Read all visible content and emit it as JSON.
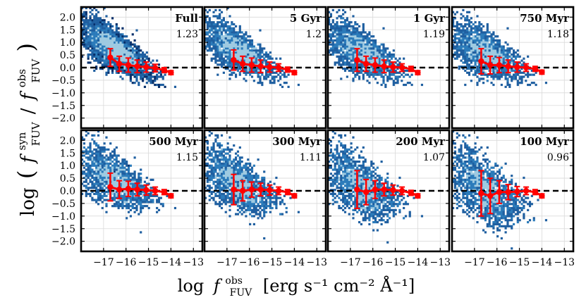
{
  "figure": {
    "ylabel_main": "log",
    "ylabel_frac_num": "f",
    "ylabel_num_sup": "syn",
    "ylabel_num_sub": "FUV",
    "ylabel_den": "f",
    "ylabel_den_sup": "obs",
    "ylabel_den_sub": "FUV",
    "xlabel_prefix": "log",
    "xlabel_f": "f",
    "xlabel_sup": "obs",
    "xlabel_sub": "FUV",
    "xlabel_units": "[erg s⁻¹ cm⁻² Å⁻¹]",
    "colors": {
      "hist_dark": "#08306b",
      "hist_mid": "#2b7bba",
      "hist_light": "#9ecae1",
      "median": "#ff0000",
      "zero_line": "#000000",
      "grid": "#d9d9d9"
    }
  },
  "chart_data": [
    {
      "type": "heatmap",
      "label": "Full",
      "value": "1.23",
      "xlim": [
        -18.0,
        -12.6
      ],
      "ylim": [
        -2.4,
        2.4
      ],
      "xticks": [
        -17,
        -16,
        -15,
        -14,
        -13
      ],
      "xtick_labels": [
        "−17",
        "−16",
        "−15",
        "−14",
        "−13"
      ],
      "yticks": [
        2.0,
        1.5,
        1.0,
        0.5,
        0.0,
        -0.5,
        -1.0,
        -1.5,
        -2.0
      ],
      "ytick_labels": [
        "2.0",
        "1.5",
        "1.0",
        "0.5",
        "0.0",
        "−0.5",
        "−1.0",
        "−1.5",
        "−2.0"
      ],
      "reference_line_y": 0,
      "medians": [
        {
          "x": -16.7,
          "y": 0.4,
          "err": 0.35
        },
        {
          "x": -16.3,
          "y": 0.15,
          "err": 0.3
        },
        {
          "x": -15.9,
          "y": 0.1,
          "err": 0.28
        },
        {
          "x": -15.5,
          "y": 0.05,
          "err": 0.25
        },
        {
          "x": -15.1,
          "y": 0.02,
          "err": 0.2
        },
        {
          "x": -14.7,
          "y": -0.02,
          "err": 0.15
        },
        {
          "x": -14.3,
          "y": -0.1,
          "err": 0.1
        },
        {
          "x": -14.0,
          "y": -0.2,
          "err": 0.08
        }
      ]
    },
    {
      "type": "heatmap",
      "label": "5 Gyr",
      "value": "1.2",
      "xlim": [
        -18.0,
        -12.6
      ],
      "ylim": [
        -2.4,
        2.4
      ],
      "xticks": [
        -17,
        -16,
        -15,
        -14,
        -13
      ],
      "xtick_labels": [
        "−17",
        "−16",
        "−15",
        "−14",
        "−13"
      ],
      "yticks": [
        2.0,
        1.5,
        1.0,
        0.5,
        0.0,
        -0.5,
        -1.0,
        -1.5,
        -2.0
      ],
      "ytick_labels": [
        "2.0",
        "1.5",
        "1.0",
        "0.5",
        "0.0",
        "−0.5",
        "−1.0",
        "−1.5",
        "−2.0"
      ],
      "reference_line_y": 0,
      "medians": [
        {
          "x": -16.7,
          "y": 0.3,
          "err": 0.4
        },
        {
          "x": -16.3,
          "y": 0.15,
          "err": 0.3
        },
        {
          "x": -15.9,
          "y": 0.1,
          "err": 0.28
        },
        {
          "x": -15.5,
          "y": 0.05,
          "err": 0.25
        },
        {
          "x": -15.1,
          "y": 0.02,
          "err": 0.2
        },
        {
          "x": -14.7,
          "y": 0.0,
          "err": 0.15
        },
        {
          "x": -14.3,
          "y": -0.08,
          "err": 0.1
        },
        {
          "x": -14.0,
          "y": -0.2,
          "err": 0.08
        }
      ]
    },
    {
      "type": "heatmap",
      "label": "1 Gyr",
      "value": "1.19",
      "xlim": [
        -18.0,
        -12.6
      ],
      "ylim": [
        -2.4,
        2.4
      ],
      "xticks": [
        -17,
        -16,
        -15,
        -14,
        -13
      ],
      "xtick_labels": [
        "−17",
        "−16",
        "−15",
        "−14",
        "−13"
      ],
      "yticks": [
        2.0,
        1.5,
        1.0,
        0.5,
        0.0,
        -0.5,
        -1.0,
        -1.5,
        -2.0
      ],
      "ytick_labels": [
        "2.0",
        "1.5",
        "1.0",
        "0.5",
        "0.0",
        "−0.5",
        "−1.0",
        "−1.5",
        "−2.0"
      ],
      "reference_line_y": 0,
      "medians": [
        {
          "x": -16.7,
          "y": 0.3,
          "err": 0.45
        },
        {
          "x": -16.3,
          "y": 0.15,
          "err": 0.3
        },
        {
          "x": -15.9,
          "y": 0.1,
          "err": 0.28
        },
        {
          "x": -15.5,
          "y": 0.05,
          "err": 0.25
        },
        {
          "x": -15.1,
          "y": 0.02,
          "err": 0.2
        },
        {
          "x": -14.7,
          "y": 0.0,
          "err": 0.15
        },
        {
          "x": -14.3,
          "y": -0.05,
          "err": 0.1
        },
        {
          "x": -14.0,
          "y": -0.2,
          "err": 0.08
        }
      ]
    },
    {
      "type": "heatmap",
      "label": "750 Myr",
      "value": "1.18",
      "xlim": [
        -18.0,
        -12.6
      ],
      "ylim": [
        -2.4,
        2.4
      ],
      "xticks": [
        -17,
        -16,
        -15,
        -14,
        -13
      ],
      "xtick_labels": [
        "−17",
        "−16",
        "−15",
        "−14",
        "−13"
      ],
      "yticks": [
        2.0,
        1.5,
        1.0,
        0.5,
        0.0,
        -0.5,
        -1.0,
        -1.5,
        -2.0
      ],
      "ytick_labels": [
        "2.0",
        "1.5",
        "1.0",
        "0.5",
        "0.0",
        "−0.5",
        "−1.0",
        "−1.5",
        "−2.0"
      ],
      "reference_line_y": 0,
      "medians": [
        {
          "x": -16.7,
          "y": 0.25,
          "err": 0.5
        },
        {
          "x": -16.3,
          "y": 0.1,
          "err": 0.35
        },
        {
          "x": -15.9,
          "y": 0.1,
          "err": 0.3
        },
        {
          "x": -15.5,
          "y": 0.05,
          "err": 0.25
        },
        {
          "x": -15.1,
          "y": 0.02,
          "err": 0.2
        },
        {
          "x": -14.7,
          "y": 0.0,
          "err": 0.15
        },
        {
          "x": -14.3,
          "y": -0.05,
          "err": 0.1
        },
        {
          "x": -14.0,
          "y": -0.18,
          "err": 0.08
        }
      ]
    },
    {
      "type": "heatmap",
      "label": "500 Myr",
      "value": "1.15",
      "xlim": [
        -18.0,
        -12.6
      ],
      "ylim": [
        -2.4,
        2.4
      ],
      "xticks": [
        -17,
        -16,
        -15,
        -14,
        -13
      ],
      "xtick_labels": [
        "−17",
        "−16",
        "−15",
        "−14",
        "−13"
      ],
      "yticks": [
        2.0,
        1.5,
        1.0,
        0.5,
        0.0,
        -0.5,
        -1.0,
        -1.5,
        -2.0
      ],
      "ytick_labels": [
        "2.0",
        "1.5",
        "1.0",
        "0.5",
        "0.0",
        "−0.5",
        "−1.0",
        "−1.5",
        "−2.0"
      ],
      "reference_line_y": 0,
      "medians": [
        {
          "x": -16.7,
          "y": 0.15,
          "err": 0.55
        },
        {
          "x": -16.3,
          "y": 0.05,
          "err": 0.35
        },
        {
          "x": -15.9,
          "y": 0.08,
          "err": 0.3
        },
        {
          "x": -15.5,
          "y": 0.05,
          "err": 0.25
        },
        {
          "x": -15.1,
          "y": 0.03,
          "err": 0.2
        },
        {
          "x": -14.7,
          "y": 0.0,
          "err": 0.15
        },
        {
          "x": -14.3,
          "y": -0.05,
          "err": 0.1
        },
        {
          "x": -14.0,
          "y": -0.2,
          "err": 0.08
        }
      ]
    },
    {
      "type": "heatmap",
      "label": "300 Myr",
      "value": "1.11",
      "xlim": [
        -18.0,
        -12.6
      ],
      "ylim": [
        -2.4,
        2.4
      ],
      "xticks": [
        -17,
        -16,
        -15,
        -14,
        -13
      ],
      "xtick_labels": [
        "−17",
        "−16",
        "−15",
        "−14",
        "−13"
      ],
      "yticks": [
        2.0,
        1.5,
        1.0,
        0.5,
        0.0,
        -0.5,
        -1.0,
        -1.5,
        -2.0
      ],
      "ytick_labels": [
        "2.0",
        "1.5",
        "1.0",
        "0.5",
        "0.0",
        "−0.5",
        "−1.0",
        "−1.5",
        "−2.0"
      ],
      "reference_line_y": 0,
      "medians": [
        {
          "x": -16.7,
          "y": 0.05,
          "err": 0.6
        },
        {
          "x": -16.3,
          "y": 0.0,
          "err": 0.4
        },
        {
          "x": -15.9,
          "y": 0.05,
          "err": 0.3
        },
        {
          "x": -15.5,
          "y": 0.05,
          "err": 0.25
        },
        {
          "x": -15.1,
          "y": 0.03,
          "err": 0.2
        },
        {
          "x": -14.7,
          "y": 0.0,
          "err": 0.15
        },
        {
          "x": -14.3,
          "y": -0.05,
          "err": 0.1
        },
        {
          "x": -14.0,
          "y": -0.2,
          "err": 0.08
        }
      ]
    },
    {
      "type": "heatmap",
      "label": "200 Myr",
      "value": "1.07",
      "xlim": [
        -18.0,
        -12.6
      ],
      "ylim": [
        -2.4,
        2.4
      ],
      "xticks": [
        -17,
        -16,
        -15,
        -14,
        -13
      ],
      "xtick_labels": [
        "−17",
        "−16",
        "−15",
        "−14",
        "−13"
      ],
      "yticks": [
        2.0,
        1.5,
        1.0,
        0.5,
        0.0,
        -0.5,
        -1.0,
        -1.5,
        -2.0
      ],
      "ytick_labels": [
        "2.0",
        "1.5",
        "1.0",
        "0.5",
        "0.0",
        "−0.5",
        "−1.0",
        "−1.5",
        "−2.0"
      ],
      "reference_line_y": 0,
      "medians": [
        {
          "x": -16.7,
          "y": 0.05,
          "err": 0.75
        },
        {
          "x": -16.3,
          "y": -0.05,
          "err": 0.5
        },
        {
          "x": -15.9,
          "y": 0.05,
          "err": 0.35
        },
        {
          "x": -15.5,
          "y": 0.05,
          "err": 0.25
        },
        {
          "x": -15.1,
          "y": 0.03,
          "err": 0.2
        },
        {
          "x": -14.7,
          "y": 0.0,
          "err": 0.15
        },
        {
          "x": -14.3,
          "y": -0.08,
          "err": 0.1
        },
        {
          "x": -14.0,
          "y": -0.2,
          "err": 0.08
        }
      ]
    },
    {
      "type": "heatmap",
      "label": "100 Myr",
      "value": "0.96",
      "xlim": [
        -18.0,
        -12.6
      ],
      "ylim": [
        -2.4,
        2.4
      ],
      "xticks": [
        -17,
        -16,
        -15,
        -14,
        -13
      ],
      "xtick_labels": [
        "−17",
        "−16",
        "−15",
        "−14",
        "−13"
      ],
      "yticks": [
        2.0,
        1.5,
        1.0,
        0.5,
        0.0,
        -0.5,
        -1.0,
        -1.5,
        -2.0
      ],
      "ytick_labels": [
        "2.0",
        "1.5",
        "1.0",
        "0.5",
        "0.0",
        "−0.5",
        "−1.0",
        "−1.5",
        "−2.0"
      ],
      "reference_line_y": 0,
      "medians": [
        {
          "x": -16.7,
          "y": -0.1,
          "err": 0.9
        },
        {
          "x": -16.3,
          "y": -0.2,
          "err": 0.7
        },
        {
          "x": -15.9,
          "y": -0.05,
          "err": 0.45
        },
        {
          "x": -15.5,
          "y": -0.05,
          "err": 0.3
        },
        {
          "x": -15.1,
          "y": -0.03,
          "err": 0.2
        },
        {
          "x": -14.7,
          "y": 0.0,
          "err": 0.15
        },
        {
          "x": -14.3,
          "y": -0.05,
          "err": 0.1
        },
        {
          "x": -14.0,
          "y": -0.2,
          "err": 0.08
        }
      ]
    }
  ]
}
